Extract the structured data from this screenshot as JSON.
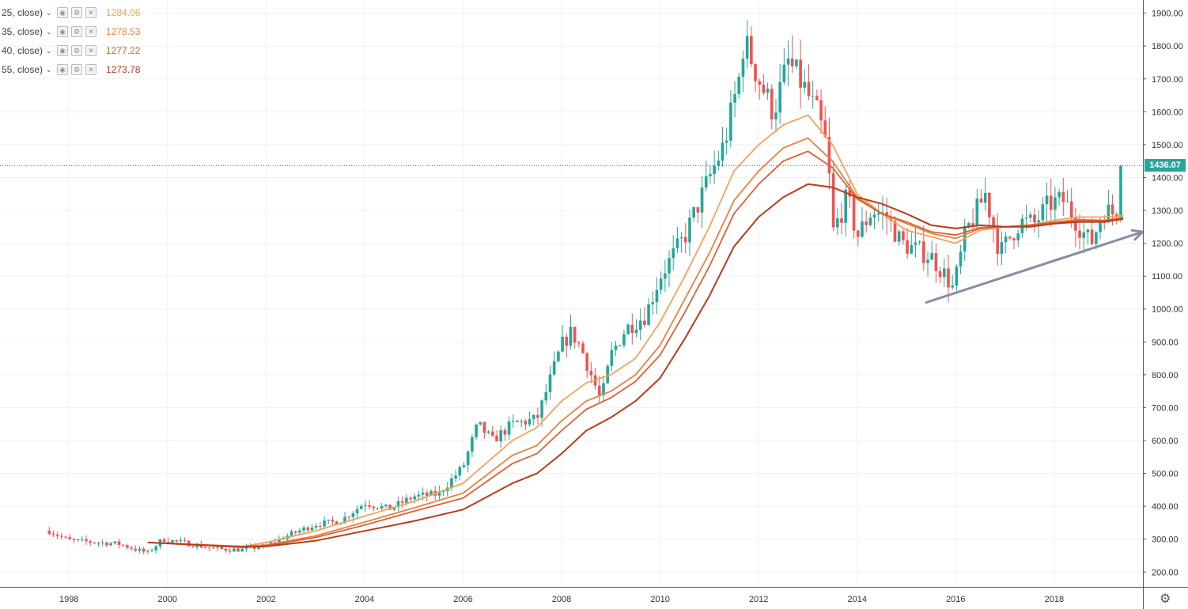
{
  "legend": [
    {
      "label": "25, close)",
      "value": "1284.06",
      "color": "#f0a35e"
    },
    {
      "label": "35, close)",
      "value": "1278.53",
      "color": "#e8803f"
    },
    {
      "label": "40, close)",
      "value": "1277.22",
      "color": "#d96034"
    },
    {
      "label": "55, close)",
      "value": "1273.78",
      "color": "#b83a1c"
    }
  ],
  "legend_icons": [
    "eye-icon",
    "gear-icon",
    "close-icon"
  ],
  "current_price_label": "1436.07",
  "colors": {
    "up": "#26a69a",
    "down": "#ef5350",
    "grid": "#eef1f4",
    "trendline": "#868ea2"
  },
  "chart_data": {
    "type": "candlestick",
    "x_tick_labels": [
      "1998",
      "2000",
      "2002",
      "2004",
      "2006",
      "2008",
      "2010",
      "2012",
      "2014",
      "2016",
      "2018"
    ],
    "x_range": [
      1996.6,
      2019.8
    ],
    "y_tick_labels": [
      "200.00",
      "300.00",
      "400.00",
      "500.00",
      "600.00",
      "700.00",
      "800.00",
      "900.00",
      "1000.00",
      "1100.00",
      "1200.00",
      "1300.00",
      "1400.00",
      "1500.00",
      "1600.00",
      "1700.00",
      "1800.00",
      "1900.00"
    ],
    "y_range": [
      155,
      1940
    ],
    "last_close": 1436.07,
    "close_anchors": [
      [
        1997.6,
        325
      ],
      [
        1998.0,
        296
      ],
      [
        1998.6,
        290
      ],
      [
        1999.0,
        286
      ],
      [
        1999.6,
        258
      ],
      [
        1999.9,
        300
      ],
      [
        2000.5,
        284
      ],
      [
        2001.0,
        270
      ],
      [
        2001.5,
        268
      ],
      [
        2002.0,
        280
      ],
      [
        2002.5,
        315
      ],
      [
        2003.0,
        345
      ],
      [
        2003.5,
        355
      ],
      [
        2004.0,
        410
      ],
      [
        2004.5,
        392
      ],
      [
        2005.0,
        430
      ],
      [
        2005.5,
        437
      ],
      [
        2006.0,
        520
      ],
      [
        2006.3,
        650
      ],
      [
        2006.6,
        600
      ],
      [
        2007.0,
        650
      ],
      [
        2007.5,
        665
      ],
      [
        2008.0,
        890
      ],
      [
        2008.2,
        930
      ],
      [
        2008.4,
        880
      ],
      [
        2008.7,
        760
      ],
      [
        2008.8,
        720
      ],
      [
        2009.0,
        860
      ],
      [
        2009.3,
        940
      ],
      [
        2009.7,
        980
      ],
      [
        2010.0,
        1100
      ],
      [
        2010.5,
        1220
      ],
      [
        2011.0,
        1400
      ],
      [
        2011.3,
        1500
      ],
      [
        2011.6,
        1700
      ],
      [
        2011.7,
        1820
      ],
      [
        2012.0,
        1700
      ],
      [
        2012.3,
        1600
      ],
      [
        2012.6,
        1750
      ],
      [
        2012.9,
        1680
      ],
      [
        2013.2,
        1590
      ],
      [
        2013.4,
        1480
      ],
      [
        2013.5,
        1230
      ],
      [
        2013.8,
        1340
      ],
      [
        2014.0,
        1220
      ],
      [
        2014.3,
        1300
      ],
      [
        2014.6,
        1280
      ],
      [
        2014.9,
        1200
      ],
      [
        2015.2,
        1180
      ],
      [
        2015.5,
        1160
      ],
      [
        2015.8,
        1100
      ],
      [
        2015.95,
        1060
      ],
      [
        2016.2,
        1230
      ],
      [
        2016.6,
        1350
      ],
      [
        2016.9,
        1170
      ],
      [
        2017.3,
        1265
      ],
      [
        2017.6,
        1260
      ],
      [
        2017.9,
        1320
      ],
      [
        2018.2,
        1330
      ],
      [
        2018.6,
        1230
      ],
      [
        2018.75,
        1200
      ],
      [
        2019.0,
        1300
      ],
      [
        2019.25,
        1290
      ],
      [
        2019.4,
        1436
      ]
    ],
    "series": [
      {
        "name": "25",
        "color": "#f0a35e",
        "points": [
          [
            1999.6,
            290
          ],
          [
            2001.5,
            277
          ],
          [
            2002.0,
            290
          ],
          [
            2003.0,
            325
          ],
          [
            2004.0,
            370
          ],
          [
            2005.0,
            415
          ],
          [
            2006.0,
            470
          ],
          [
            2007.0,
            600
          ],
          [
            2007.5,
            640
          ],
          [
            2008.0,
            720
          ],
          [
            2008.5,
            775
          ],
          [
            2009.0,
            800
          ],
          [
            2009.5,
            850
          ],
          [
            2010.0,
            960
          ],
          [
            2010.5,
            1100
          ],
          [
            2011.0,
            1250
          ],
          [
            2011.5,
            1420
          ],
          [
            2012.0,
            1500
          ],
          [
            2012.5,
            1560
          ],
          [
            2013.0,
            1590
          ],
          [
            2013.5,
            1500
          ],
          [
            2014.0,
            1350
          ],
          [
            2014.5,
            1290
          ],
          [
            2015.0,
            1240
          ],
          [
            2015.5,
            1220
          ],
          [
            2016.0,
            1200
          ],
          [
            2016.5,
            1240
          ],
          [
            2017.0,
            1250
          ],
          [
            2017.5,
            1255
          ],
          [
            2018.0,
            1270
          ],
          [
            2018.5,
            1280
          ],
          [
            2019.0,
            1280
          ],
          [
            2019.4,
            1284
          ]
        ]
      },
      {
        "name": "35",
        "color": "#e8803f",
        "points": [
          [
            1999.6,
            290
          ],
          [
            2001.5,
            278
          ],
          [
            2002.0,
            282
          ],
          [
            2003.0,
            310
          ],
          [
            2004.0,
            352
          ],
          [
            2005.0,
            395
          ],
          [
            2006.0,
            440
          ],
          [
            2007.0,
            555
          ],
          [
            2007.5,
            585
          ],
          [
            2008.0,
            660
          ],
          [
            2008.5,
            720
          ],
          [
            2009.0,
            750
          ],
          [
            2009.5,
            800
          ],
          [
            2010.0,
            890
          ],
          [
            2010.5,
            1030
          ],
          [
            2011.0,
            1170
          ],
          [
            2011.5,
            1330
          ],
          [
            2012.0,
            1420
          ],
          [
            2012.5,
            1490
          ],
          [
            2013.0,
            1520
          ],
          [
            2013.5,
            1450
          ],
          [
            2014.0,
            1340
          ],
          [
            2014.5,
            1290
          ],
          [
            2015.0,
            1260
          ],
          [
            2015.5,
            1230
          ],
          [
            2016.0,
            1215
          ],
          [
            2016.5,
            1245
          ],
          [
            2017.0,
            1250
          ],
          [
            2017.5,
            1255
          ],
          [
            2018.0,
            1265
          ],
          [
            2018.5,
            1272
          ],
          [
            2019.0,
            1270
          ],
          [
            2019.4,
            1278.5
          ]
        ]
      },
      {
        "name": "40",
        "color": "#d96034",
        "points": [
          [
            1999.6,
            290
          ],
          [
            2001.5,
            278
          ],
          [
            2002.0,
            280
          ],
          [
            2003.0,
            305
          ],
          [
            2004.0,
            343
          ],
          [
            2005.0,
            385
          ],
          [
            2006.0,
            425
          ],
          [
            2007.0,
            530
          ],
          [
            2007.5,
            560
          ],
          [
            2008.0,
            630
          ],
          [
            2008.5,
            695
          ],
          [
            2009.0,
            730
          ],
          [
            2009.5,
            780
          ],
          [
            2010.0,
            860
          ],
          [
            2010.5,
            990
          ],
          [
            2011.0,
            1130
          ],
          [
            2011.5,
            1290
          ],
          [
            2012.0,
            1380
          ],
          [
            2012.5,
            1450
          ],
          [
            2013.0,
            1480
          ],
          [
            2013.5,
            1430
          ],
          [
            2014.0,
            1335
          ],
          [
            2014.5,
            1290
          ],
          [
            2015.0,
            1265
          ],
          [
            2015.5,
            1235
          ],
          [
            2016.0,
            1225
          ],
          [
            2016.5,
            1248
          ],
          [
            2017.0,
            1250
          ],
          [
            2017.5,
            1255
          ],
          [
            2018.0,
            1262
          ],
          [
            2018.5,
            1270
          ],
          [
            2019.0,
            1268
          ],
          [
            2019.4,
            1277.2
          ]
        ]
      },
      {
        "name": "55",
        "color": "#b83a1c",
        "points": [
          [
            1999.6,
            290
          ],
          [
            2001.5,
            276
          ],
          [
            2002.0,
            278
          ],
          [
            2003.0,
            295
          ],
          [
            2004.0,
            325
          ],
          [
            2005.0,
            355
          ],
          [
            2006.0,
            390
          ],
          [
            2007.0,
            470
          ],
          [
            2007.5,
            500
          ],
          [
            2008.0,
            560
          ],
          [
            2008.5,
            630
          ],
          [
            2009.0,
            670
          ],
          [
            2009.5,
            720
          ],
          [
            2010.0,
            790
          ],
          [
            2010.5,
            910
          ],
          [
            2011.0,
            1040
          ],
          [
            2011.5,
            1190
          ],
          [
            2012.0,
            1280
          ],
          [
            2012.5,
            1340
          ],
          [
            2013.0,
            1380
          ],
          [
            2013.5,
            1370
          ],
          [
            2014.0,
            1340
          ],
          [
            2014.5,
            1320
          ],
          [
            2015.0,
            1290
          ],
          [
            2015.5,
            1255
          ],
          [
            2016.0,
            1245
          ],
          [
            2016.5,
            1255
          ],
          [
            2017.0,
            1250
          ],
          [
            2017.5,
            1250
          ],
          [
            2018.0,
            1260
          ],
          [
            2018.5,
            1265
          ],
          [
            2019.0,
            1265
          ],
          [
            2019.4,
            1273.8
          ]
        ]
      }
    ],
    "trendline": {
      "from": [
        2015.4,
        1020
      ],
      "to": [
        2019.8,
        1235
      ]
    },
    "grid": true
  }
}
